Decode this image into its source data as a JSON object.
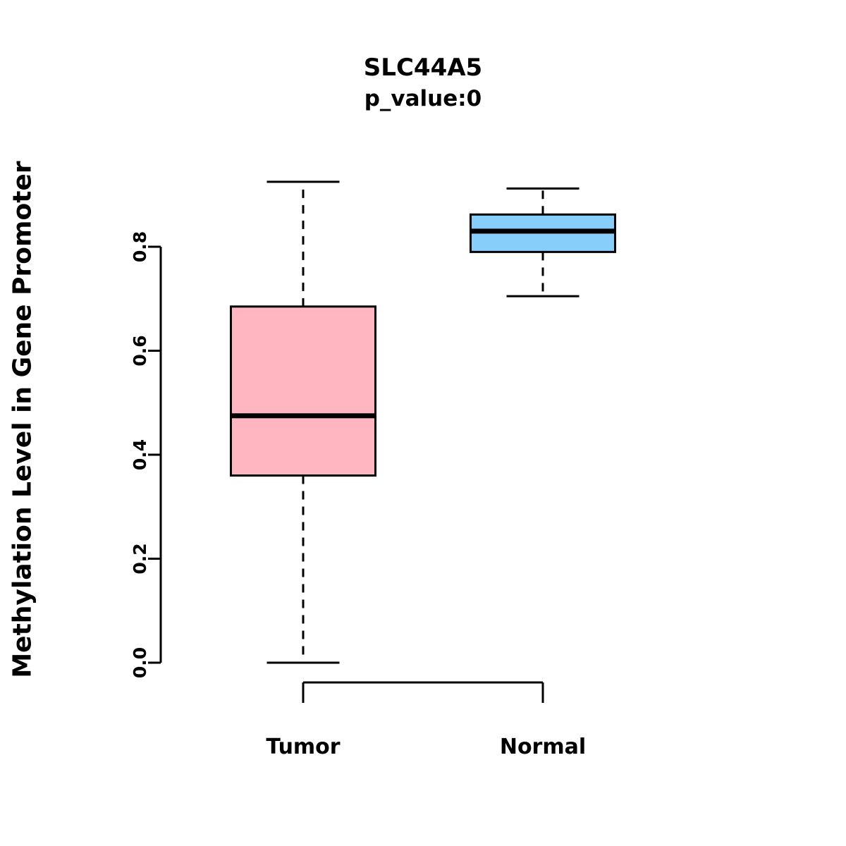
{
  "chart_data": {
    "type": "boxplot",
    "title": "SLC44A5",
    "subtitle": "p_value:0",
    "ylabel": "Methylation Level in Gene Promoter",
    "xlabel": "",
    "categories": [
      "Tumor",
      "Normal"
    ],
    "yticks": [
      0.0,
      0.2,
      0.4,
      0.6,
      0.8
    ],
    "ytick_labels": [
      "0.0",
      "0.2",
      "0.4",
      "0.6",
      "0.8"
    ],
    "ylim": [
      0.0,
      0.95
    ],
    "grid": "off",
    "legend": "none",
    "series": [
      {
        "name": "Tumor",
        "color": "#FFB6C1",
        "whisker_min": 0.0,
        "q1": 0.36,
        "median": 0.475,
        "q3": 0.685,
        "whisker_max": 0.925
      },
      {
        "name": "Normal",
        "color": "#87CEFA",
        "whisker_min": 0.705,
        "q1": 0.79,
        "median": 0.83,
        "q3": 0.862,
        "whisker_max": 0.912
      }
    ],
    "stroke_color": "#000000"
  }
}
